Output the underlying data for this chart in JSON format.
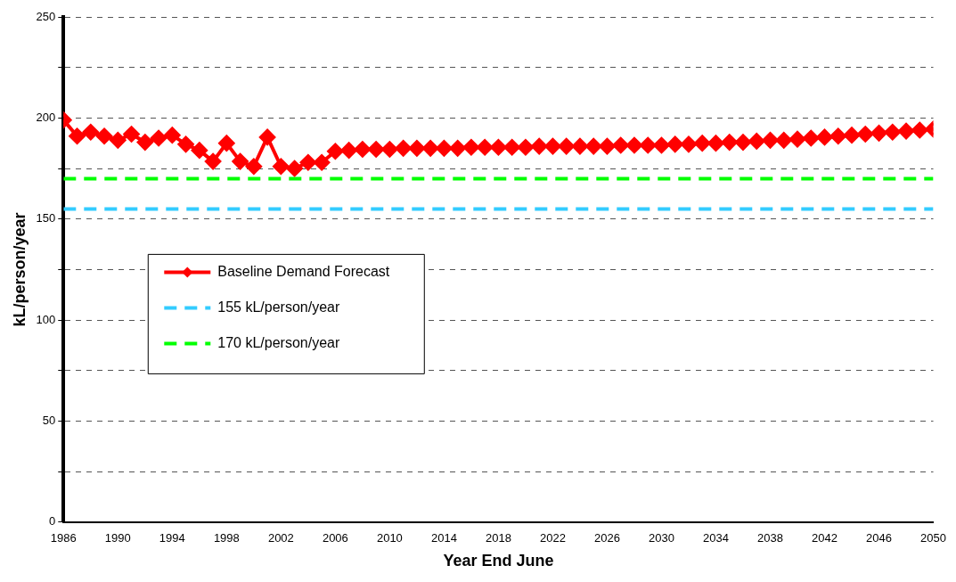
{
  "chart_data": {
    "type": "line",
    "xlabel": "Year End June",
    "ylabel": "kL/person/year",
    "x": [
      1986,
      1987,
      1988,
      1989,
      1990,
      1991,
      1992,
      1993,
      1994,
      1995,
      1996,
      1997,
      1998,
      1999,
      2000,
      2001,
      2002,
      2003,
      2004,
      2005,
      2006,
      2007,
      2008,
      2009,
      2010,
      2011,
      2012,
      2013,
      2014,
      2015,
      2016,
      2017,
      2018,
      2019,
      2020,
      2021,
      2022,
      2023,
      2024,
      2025,
      2026,
      2027,
      2028,
      2029,
      2030,
      2031,
      2032,
      2033,
      2034,
      2035,
      2036,
      2037,
      2038,
      2039,
      2040,
      2041,
      2042,
      2043,
      2044,
      2045,
      2046,
      2047,
      2048,
      2049,
      2050
    ],
    "series": [
      {
        "name": "Baseline Demand Forecast",
        "color": "#ff0000",
        "values": [
          199,
          191,
          193,
          191,
          189,
          192,
          188,
          190,
          191.5,
          187,
          184,
          178.5,
          187.5,
          178.5,
          176,
          190.5,
          176,
          175,
          178,
          178,
          183.5,
          184,
          184.5,
          184.5,
          184.5,
          185,
          185,
          185,
          185,
          185,
          185.5,
          185.5,
          185.5,
          185.5,
          185.5,
          186,
          186,
          186,
          186,
          186,
          186,
          186.5,
          186.5,
          186.5,
          186.5,
          187,
          187,
          187.5,
          187.5,
          188,
          188,
          188.5,
          189,
          189,
          189.5,
          190,
          190.5,
          191,
          191.5,
          192,
          192.5,
          193,
          193.5,
          194,
          194.5
        ]
      }
    ],
    "ref_lines": [
      {
        "axis": "y",
        "value": 155,
        "label": "155 kL/person/year",
        "color": "#33ccff",
        "line_style": "dashed"
      },
      {
        "axis": "y",
        "value": 170,
        "label": "170 kL/person/year",
        "color": "#00ff00",
        "line_style": "dashed"
      }
    ],
    "xlim": [
      1986,
      2050
    ],
    "xticks": [
      1986,
      1990,
      1994,
      1998,
      2002,
      2006,
      2010,
      2014,
      2018,
      2022,
      2026,
      2030,
      2034,
      2038,
      2042,
      2046,
      2050
    ],
    "ylim": [
      0,
      250
    ],
    "yticks": [
      0,
      {
        "value": 25,
        "label": null
      },
      50,
      {
        "value": 75,
        "label": null
      },
      100,
      {
        "value": 125,
        "label": null
      },
      150,
      {
        "value": 175,
        "label": null
      },
      200,
      {
        "value": 225,
        "label": null
      },
      250
    ],
    "grid": "y",
    "legend": "left",
    "marker": "diamond",
    "line_style": "solid"
  }
}
